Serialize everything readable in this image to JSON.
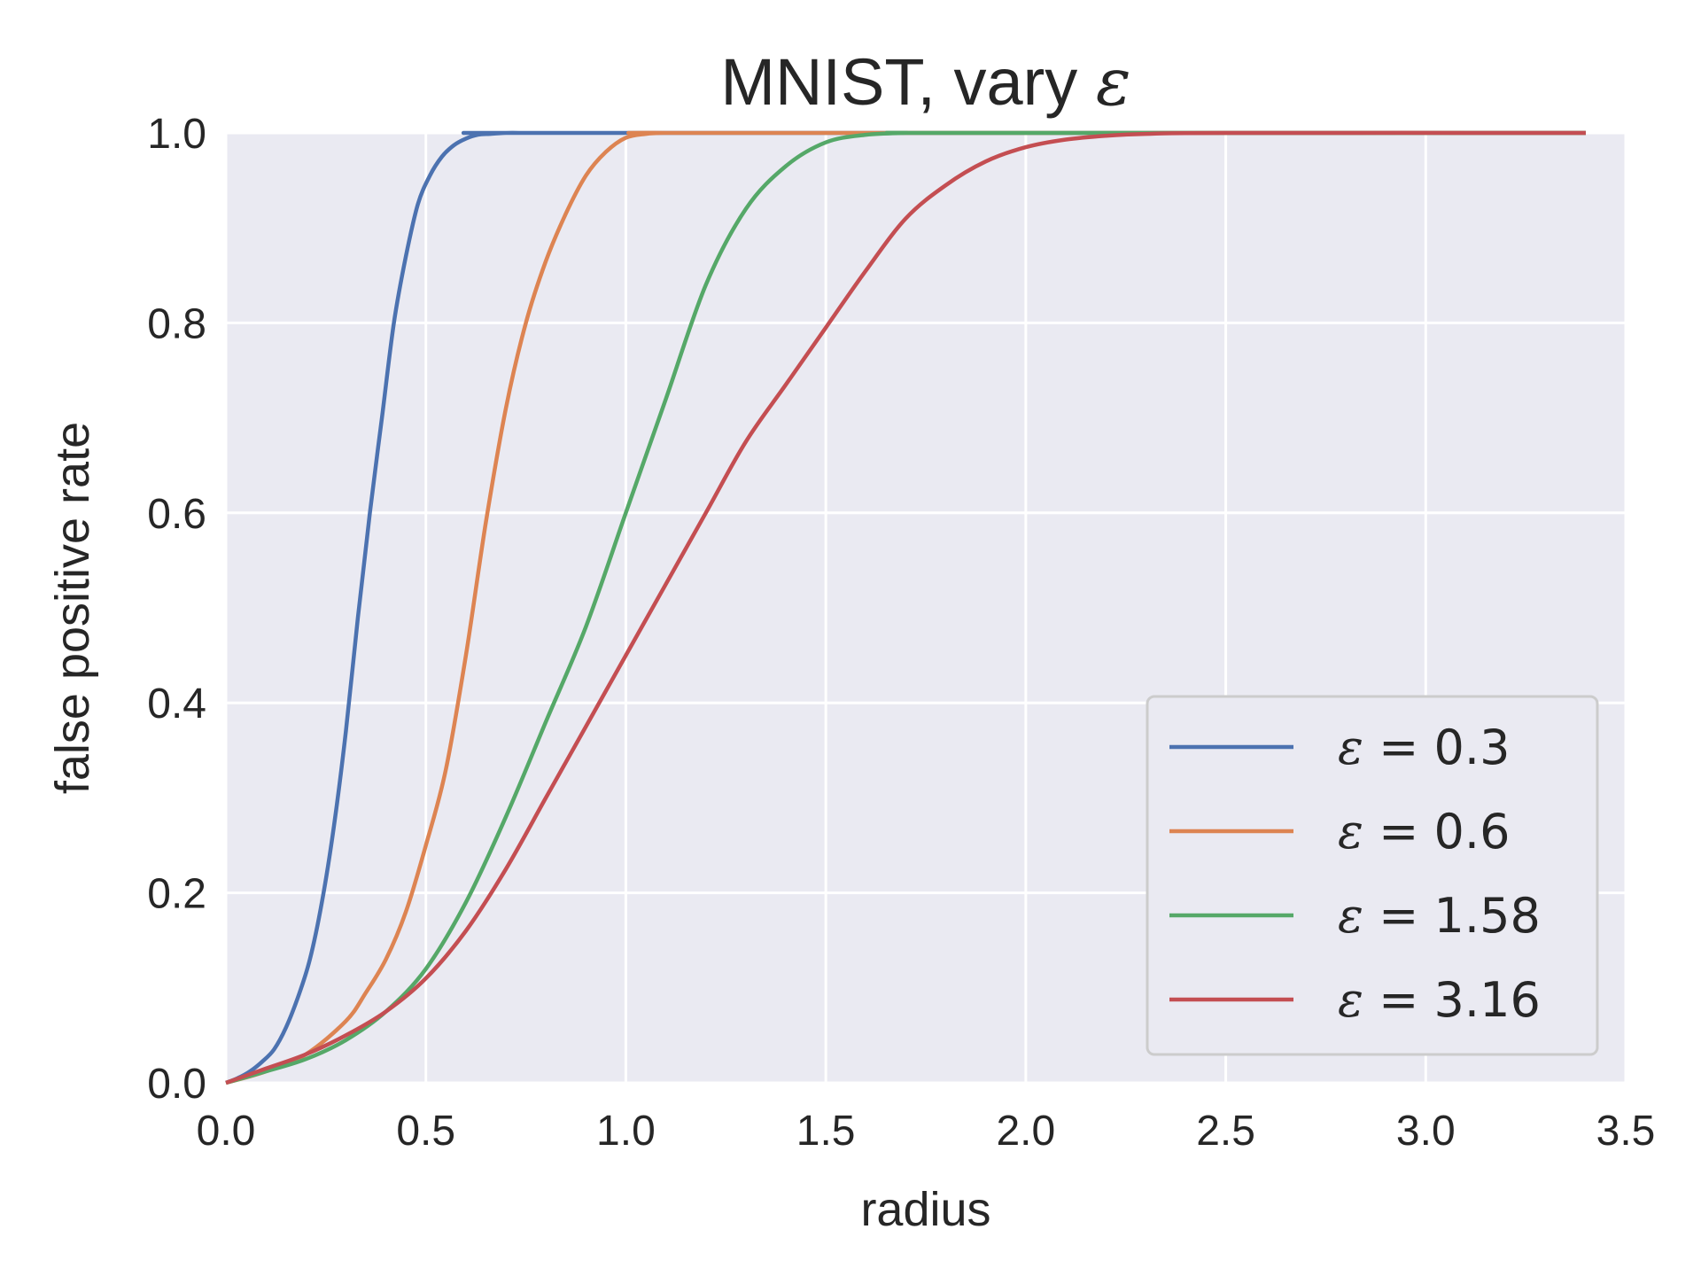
{
  "chart_data": {
    "type": "line",
    "title": "MNIST, vary ε",
    "title_prefix": "MNIST, vary",
    "title_symbol": "ε",
    "xlabel": "radius",
    "ylabel": "false positive rate",
    "xlim": [
      0,
      3.5
    ],
    "ylim": [
      0,
      1
    ],
    "xticks": [
      "0.0",
      "0.5",
      "1.0",
      "1.5",
      "2.0",
      "2.5",
      "3.0",
      "3.5"
    ],
    "yticks": [
      "0.0",
      "0.2",
      "0.4",
      "0.6",
      "0.8",
      "1.0"
    ],
    "grid": true,
    "legend_position": "bottom-right",
    "series": [
      {
        "name": "ε = 0.3",
        "symbol": "ε",
        "eq": "= 0.3",
        "color": "#4c72b0",
        "x": [
          0,
          0.03,
          0.06,
          0.09,
          0.12,
          0.15,
          0.18,
          0.21,
          0.24,
          0.27,
          0.3,
          0.33,
          0.36,
          0.39,
          0.42,
          0.45,
          0.48,
          0.51,
          0.54,
          0.57,
          0.6,
          0.63,
          0.66,
          0.7,
          0.75,
          0.8,
          3.4
        ],
        "y": [
          0,
          0.005,
          0.012,
          0.022,
          0.035,
          0.058,
          0.09,
          0.13,
          0.19,
          0.27,
          0.37,
          0.49,
          0.6,
          0.7,
          0.8,
          0.87,
          0.925,
          0.955,
          0.975,
          0.987,
          0.994,
          0.998,
          0.999,
          1.0,
          1.0,
          1.0,
          1.0
        ]
      },
      {
        "name": "ε = 0.6",
        "symbol": "ε",
        "eq": "= 0.6",
        "color": "#dd8452",
        "x": [
          0,
          0.1,
          0.2,
          0.3,
          0.35,
          0.4,
          0.45,
          0.5,
          0.55,
          0.6,
          0.65,
          0.7,
          0.75,
          0.8,
          0.85,
          0.9,
          0.95,
          1.0,
          1.05,
          1.1,
          1.2,
          3.4
        ],
        "y": [
          0,
          0.012,
          0.03,
          0.065,
          0.095,
          0.13,
          0.18,
          0.25,
          0.33,
          0.45,
          0.59,
          0.71,
          0.8,
          0.865,
          0.915,
          0.955,
          0.98,
          0.995,
          0.999,
          1.0,
          1.0,
          1.0
        ],
        "segment_end": 3.4
      },
      {
        "name": "ε = 1.58",
        "symbol": "ε",
        "eq": "= 1.58",
        "color": "#55a868",
        "x": [
          0,
          0.1,
          0.2,
          0.3,
          0.4,
          0.5,
          0.6,
          0.7,
          0.8,
          0.9,
          1.0,
          1.1,
          1.2,
          1.3,
          1.4,
          1.5,
          1.6,
          1.7,
          1.8,
          3.4
        ],
        "y": [
          0,
          0.012,
          0.025,
          0.045,
          0.075,
          0.12,
          0.19,
          0.28,
          0.38,
          0.48,
          0.6,
          0.72,
          0.84,
          0.92,
          0.965,
          0.99,
          0.998,
          1.0,
          1.0,
          1.0
        ]
      },
      {
        "name": "ε = 3.16",
        "symbol": "ε",
        "eq": "= 3.16",
        "color": "#c44e52",
        "x": [
          0,
          0.1,
          0.2,
          0.3,
          0.4,
          0.5,
          0.6,
          0.7,
          0.8,
          0.9,
          1.0,
          1.1,
          1.2,
          1.3,
          1.4,
          1.5,
          1.6,
          1.7,
          1.8,
          1.9,
          2.0,
          2.1,
          2.2,
          2.3,
          2.5,
          3.4
        ],
        "y": [
          0,
          0.015,
          0.03,
          0.05,
          0.075,
          0.11,
          0.16,
          0.225,
          0.3,
          0.375,
          0.45,
          0.525,
          0.6,
          0.675,
          0.735,
          0.795,
          0.855,
          0.91,
          0.945,
          0.97,
          0.985,
          0.993,
          0.997,
          0.999,
          1.0,
          1.0
        ]
      }
    ]
  }
}
